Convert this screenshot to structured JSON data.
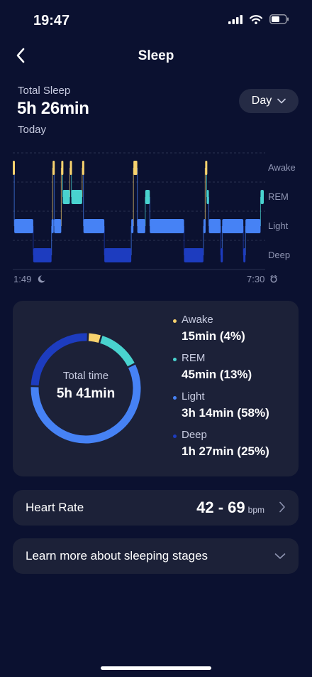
{
  "status_bar": {
    "time": "19:47"
  },
  "header": {
    "title": "Sleep"
  },
  "summary": {
    "label": "Total Sleep",
    "value": "5h 26min",
    "date": "Today"
  },
  "period_selector": {
    "value": "Day"
  },
  "colors": {
    "awake": "#f7d26e",
    "rem": "#49d3cf",
    "light": "#4682f5",
    "deep": "#1d3cbf",
    "background": "#0b1130",
    "card": "#1c2138"
  },
  "hypnogram": {
    "stage_labels": [
      "Awake",
      "REM",
      "Light",
      "Deep"
    ],
    "start_time": "1:49",
    "end_time": "7:30",
    "chart_data": {
      "type": "hypnogram",
      "stages": [
        "Awake",
        "REM",
        "Light",
        "Deep"
      ],
      "segments": [
        {
          "stage": "Awake",
          "start": 0.0,
          "end": 0.007
        },
        {
          "stage": "Light",
          "start": 0.007,
          "end": 0.095
        },
        {
          "stage": "Deep",
          "start": 0.095,
          "end": 0.18
        },
        {
          "stage": "Light",
          "start": 0.18,
          "end": 0.185
        },
        {
          "stage": "Awake",
          "start": 0.185,
          "end": 0.192
        },
        {
          "stage": "Light",
          "start": 0.192,
          "end": 0.225
        },
        {
          "stage": "Awake",
          "start": 0.225,
          "end": 0.232
        },
        {
          "stage": "REM",
          "start": 0.232,
          "end": 0.265
        },
        {
          "stage": "Awake",
          "start": 0.265,
          "end": 0.272
        },
        {
          "stage": "REM",
          "start": 0.272,
          "end": 0.322
        },
        {
          "stage": "Awake",
          "start": 0.322,
          "end": 0.328
        },
        {
          "stage": "Light",
          "start": 0.328,
          "end": 0.425
        },
        {
          "stage": "Deep",
          "start": 0.425,
          "end": 0.55
        },
        {
          "stage": "Light",
          "start": 0.55,
          "end": 0.56
        },
        {
          "stage": "Awake",
          "start": 0.56,
          "end": 0.578
        },
        {
          "stage": "Light",
          "start": 0.578,
          "end": 0.615
        },
        {
          "stage": "REM",
          "start": 0.615,
          "end": 0.636
        },
        {
          "stage": "Light",
          "start": 0.636,
          "end": 0.795
        },
        {
          "stage": "Deep",
          "start": 0.795,
          "end": 0.885
        },
        {
          "stage": "Light",
          "start": 0.885,
          "end": 0.893
        },
        {
          "stage": "Awake",
          "start": 0.893,
          "end": 0.9
        },
        {
          "stage": "REM",
          "start": 0.9,
          "end": 0.91
        },
        {
          "stage": "Light",
          "start": 0.91,
          "end": 0.965
        },
        {
          "stage": "Deep",
          "start": 0.965,
          "end": 0.972
        },
        {
          "stage": "Light",
          "start": 0.972,
          "end": 1.07
        },
        {
          "stage": "Deep",
          "start": 1.07,
          "end": 1.08
        },
        {
          "stage": "Light",
          "start": 1.08,
          "end": 1.15
        },
        {
          "stage": "REM",
          "start": 1.15,
          "end": 1.165
        }
      ]
    }
  },
  "stats": {
    "total_label": "Total time",
    "total_value": "5h 41min",
    "chart_data": {
      "type": "pie",
      "categories": [
        "Awake",
        "REM",
        "Light",
        "Deep"
      ],
      "values": [
        4,
        13,
        58,
        25
      ]
    },
    "items": [
      {
        "name": "Awake",
        "value": "15min  (4%)",
        "color": "#f7d26e"
      },
      {
        "name": "REM",
        "value": "45min  (13%)",
        "color": "#49d3cf"
      },
      {
        "name": "Light",
        "value": "3h 14min  (58%)",
        "color": "#4682f5"
      },
      {
        "name": "Deep",
        "value": "1h 27min  (25%)",
        "color": "#1d3cbf"
      }
    ]
  },
  "heart_rate": {
    "label": "Heart Rate",
    "value": "42 - 69",
    "unit": "bpm"
  },
  "learn_more": {
    "label": "Learn more about sleeping stages"
  }
}
